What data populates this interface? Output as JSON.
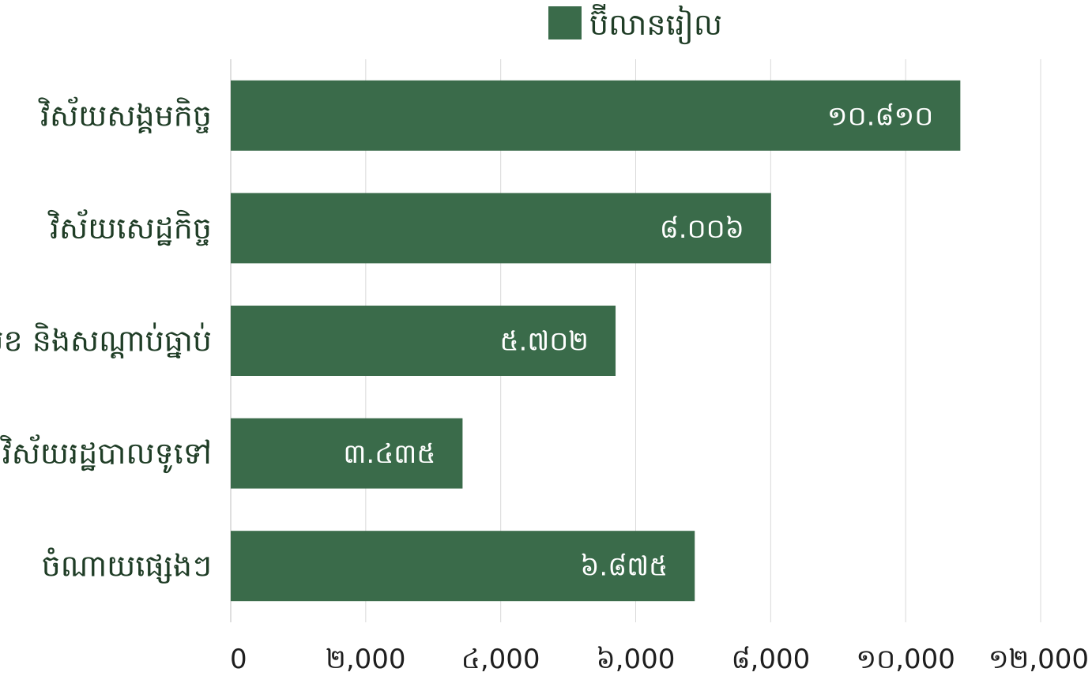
{
  "chart_data": {
    "type": "bar",
    "orientation": "horizontal",
    "categories": [
      "វិស័យសង្គមកិច្ច",
      "វិស័យសេដ្ឋកិច្ច",
      "សន្តិសុខ និងសណ្តាប់ធ្នាប់",
      "វិស័យរដ្ឋបាលទូទៅ",
      "ចំណាយផ្សេងៗ"
    ],
    "series": [
      {
        "name": "ប៊ីលានរៀល",
        "values": [
          10810,
          8006,
          5702,
          3435,
          6875
        ],
        "data_labels": [
          "១០.៨១០",
          "៨.០០៦",
          "៥.៧០២",
          "៣.៤៣៥",
          "៦.៨៧៥"
        ],
        "color": "#3a6b4a"
      }
    ],
    "xlim": [
      0,
      12000
    ],
    "xticks": [
      0,
      2000,
      4000,
      6000,
      8000,
      10000,
      12000
    ],
    "xtick_labels": [
      "0",
      "២,000",
      "៤,000",
      "៦,000",
      "៨,000",
      "១០,000",
      "១២,000"
    ],
    "grid": true,
    "legend_position": "top",
    "title": "",
    "xlabel": "",
    "ylabel": ""
  }
}
